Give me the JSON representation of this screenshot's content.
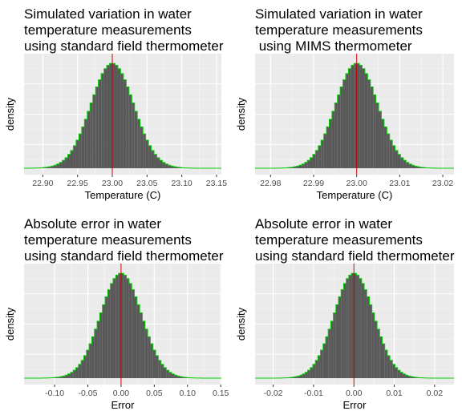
{
  "chart_data": [
    {
      "type": "histogram",
      "title_lines": [
        "Simulated variation in water",
        "temperature measurements",
        "using standard field thermometer"
      ],
      "xlabel": "Temperature (C)",
      "ylabel": "density",
      "center": 23.0,
      "sd": 0.0308,
      "xlim": [
        22.873,
        23.157
      ],
      "ticks": [
        22.9,
        22.95,
        23.0,
        23.05,
        23.1,
        23.15
      ],
      "tick_labels": [
        "22.90",
        "22.95",
        "23.00",
        "23.05",
        "23.10",
        "23.15"
      ],
      "n_bins": 60,
      "curve_color": "#00cc00",
      "bar_color": "#595959",
      "vline": 23.0,
      "vline_color": "#cc0000"
    },
    {
      "type": "histogram",
      "title_lines": [
        "Simulated variation in water",
        "temperature measurements",
        " using MIMS thermometer"
      ],
      "xlabel": "Temperature (C)",
      "ylabel": "density",
      "center": 23.0,
      "sd": 0.0049,
      "xlim": [
        22.9764,
        23.0226
      ],
      "ticks": [
        22.98,
        22.99,
        23.0,
        23.01,
        23.02
      ],
      "tick_labels": [
        "22.98",
        "22.99",
        "23.00",
        "23.01",
        "23.02"
      ],
      "n_bins": 60,
      "curve_color": "#00cc00",
      "bar_color": "#595959",
      "vline": 23.0,
      "vline_color": "#cc0000"
    },
    {
      "type": "histogram",
      "title_lines": [
        "Absolute error in water",
        "temperature measurements",
        "using standard field thermometer"
      ],
      "xlabel": "Error",
      "ylabel": "density",
      "center": 0.0,
      "sd": 0.0308,
      "xlim": [
        -0.146,
        0.151
      ],
      "ticks": [
        -0.1,
        -0.05,
        0.0,
        0.05,
        0.1,
        0.15
      ],
      "tick_labels": [
        "-0.10",
        "-0.05",
        "0.00",
        "0.05",
        "0.10",
        "0.15"
      ],
      "n_bins": 60,
      "curve_color": "#00cc00",
      "bar_color": "#595959",
      "vline": 0.0,
      "vline_color": "#cc0000"
    },
    {
      "type": "histogram",
      "title_lines": [
        "Absolute error in water",
        "temperature measurements",
        "using standard field thermometer"
      ],
      "xlabel": "Error",
      "ylabel": "density",
      "center": 0.0,
      "sd": 0.0049,
      "xlim": [
        -0.0245,
        0.0248
      ],
      "ticks": [
        -0.02,
        -0.01,
        0.0,
        0.01,
        0.02
      ],
      "tick_labels": [
        "-0.02",
        "-0.01",
        "0.00",
        "0.01",
        "0.02"
      ],
      "n_bins": 60,
      "curve_color": "#00cc00",
      "bar_color": "#595959",
      "vline": 0.0,
      "vline_color": "#cc0000"
    }
  ]
}
